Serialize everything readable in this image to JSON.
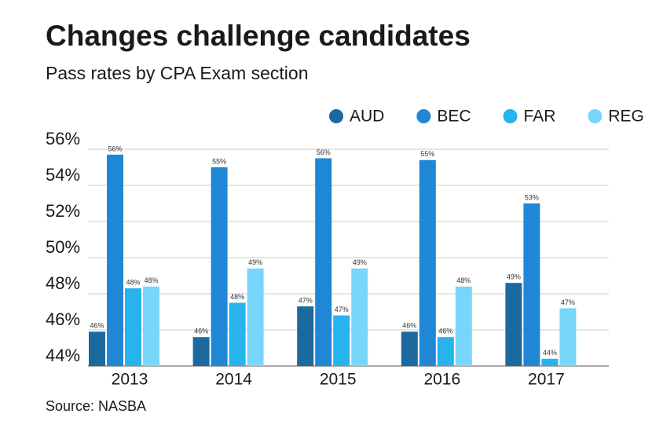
{
  "chart_data": {
    "type": "bar",
    "title": "Changes challenge candidates",
    "subtitle": "Pass rates by CPA Exam section",
    "source": "Source: NASBA",
    "categories": [
      "2013",
      "2014",
      "2015",
      "2016",
      "2017"
    ],
    "series": [
      {
        "name": "AUD",
        "color": "#1b699f",
        "values": [
          45.9,
          45.6,
          47.3,
          45.9,
          48.6
        ],
        "value_labels": [
          "46%",
          "46%",
          "47%",
          "46%",
          "49%"
        ]
      },
      {
        "name": "BEC",
        "color": "#1f87d6",
        "values": [
          55.7,
          55.0,
          55.5,
          55.4,
          53.0
        ],
        "value_labels": [
          "56%",
          "55%",
          "56%",
          "55%",
          "53%"
        ]
      },
      {
        "name": "FAR",
        "color": "#26b3ee",
        "values": [
          48.3,
          47.5,
          46.8,
          45.6,
          44.4
        ],
        "value_labels": [
          "48%",
          "48%",
          "47%",
          "46%",
          "44%"
        ]
      },
      {
        "name": "REG",
        "color": "#79d6fb",
        "values": [
          48.4,
          49.4,
          49.4,
          48.4,
          47.2
        ],
        "value_labels": [
          "48%",
          "49%",
          "49%",
          "48%",
          "47%"
        ]
      }
    ],
    "ylim": [
      44,
      56
    ],
    "yticks": [
      {
        "value": 44,
        "label": "44%"
      },
      {
        "value": 46,
        "label": "46%"
      },
      {
        "value": 48,
        "label": "48%"
      },
      {
        "value": 50,
        "label": "50%"
      },
      {
        "value": 52,
        "label": "52%"
      },
      {
        "value": 54,
        "label": "54%"
      },
      {
        "value": 56,
        "label": "56%"
      }
    ],
    "grid": true,
    "legend": "top-right"
  }
}
